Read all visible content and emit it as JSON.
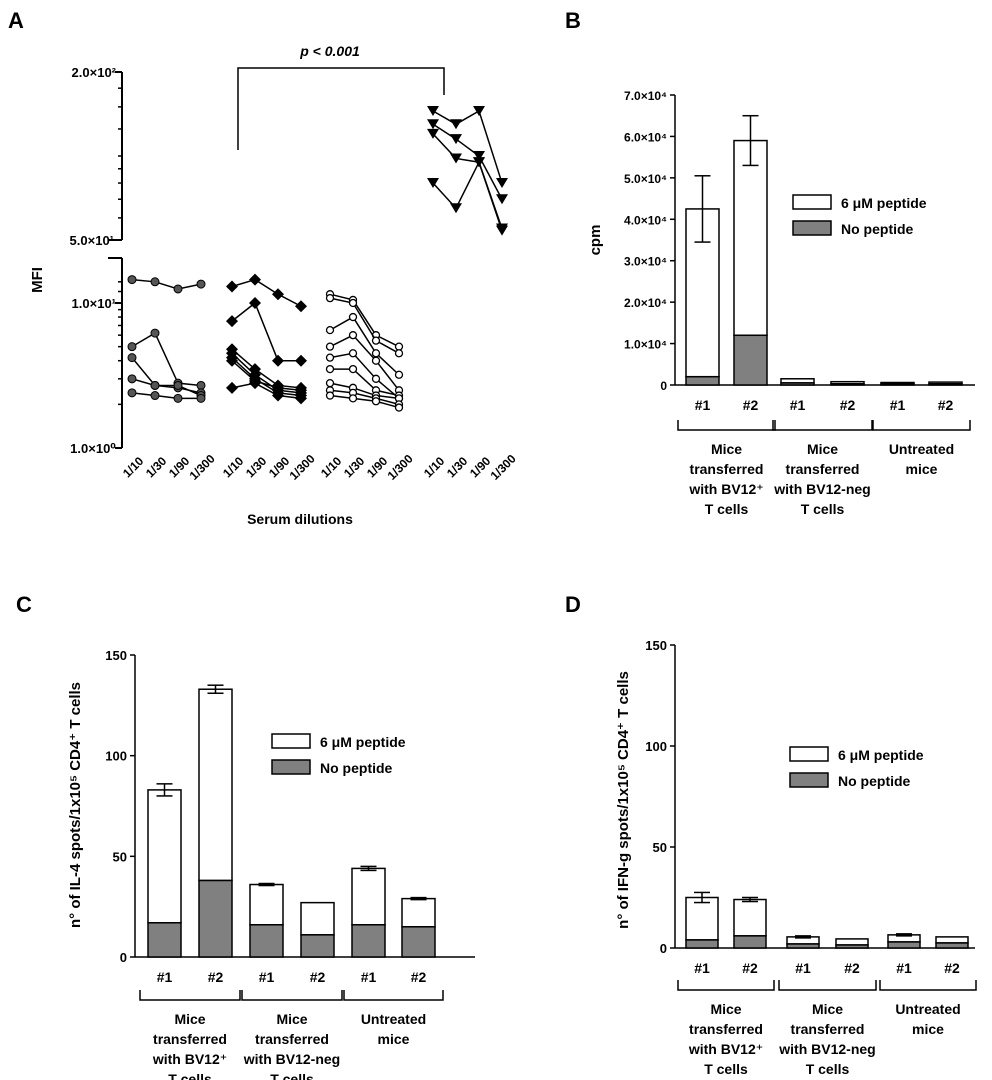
{
  "chart_data": [
    {
      "panel": "A",
      "type": "scatter",
      "ylabel": "MFI",
      "xlabel": "Serum dilutions",
      "yscale": "log",
      "y_tick_labels": [
        "1.0×10⁰",
        "1.0×10¹",
        "5.0×10¹",
        "2.0×10²"
      ],
      "y_tick_values": [
        1,
        10,
        50,
        200
      ],
      "x_categories": [
        "1/10",
        "1/30",
        "1/90",
        "1/300"
      ],
      "annotation": "p < 0.001",
      "groups": [
        {
          "marker": "circle-filled",
          "series": [
            [
              14.5,
              14.0,
              12.5,
              13.5
            ],
            [
              5.0,
              6.2,
              2.8,
              2.7
            ],
            [
              4.2,
              2.7,
              2.6,
              2.4
            ],
            [
              3.0,
              2.7,
              2.7,
              2.3
            ],
            [
              2.4,
              2.3,
              2.2,
              2.2
            ]
          ]
        },
        {
          "marker": "diamond",
          "series": [
            [
              13.0,
              14.5,
              11.5,
              9.5
            ],
            [
              7.5,
              10.0,
              4.0,
              4.0
            ],
            [
              4.8,
              3.5,
              2.7,
              2.6
            ],
            [
              4.5,
              3.2,
              2.5,
              2.4
            ],
            [
              4.2,
              3.0,
              2.4,
              2.3
            ],
            [
              2.6,
              2.8,
              2.3,
              2.2
            ],
            [
              4.0,
              2.9,
              2.6,
              2.5
            ]
          ]
        },
        {
          "marker": "circle-open",
          "series": [
            [
              11.5,
              10.5,
              6.0,
              5.0
            ],
            [
              10.8,
              10.0,
              5.5,
              4.5
            ],
            [
              6.5,
              8.0,
              4.5,
              3.2
            ],
            [
              5.0,
              6.0,
              4.0,
              2.5
            ],
            [
              4.2,
              4.5,
              3.0,
              2.2
            ],
            [
              3.5,
              3.5,
              2.5,
              2.3
            ],
            [
              2.8,
              2.6,
              2.3,
              2.2
            ],
            [
              2.5,
              2.4,
              2.2,
              2.0
            ],
            [
              2.3,
              2.2,
              2.1,
              1.9
            ]
          ]
        },
        {
          "marker": "triangle-down",
          "series": [
            [
              145,
              130,
              145,
              80
            ],
            [
              130,
              115,
              100,
              70
            ],
            [
              120,
              98,
              95,
              55
            ],
            [
              80,
              65,
              95,
              54
            ]
          ]
        }
      ]
    },
    {
      "panel": "B",
      "type": "bar",
      "stacked": true,
      "ylabel": "cpm",
      "y_tick_labels": [
        "0",
        "1.0×10⁴",
        "2.0×10⁴",
        "3.0×10⁴",
        "4.0×10⁴",
        "5.0×10⁴",
        "6.0×10⁴",
        "7.0×10⁴"
      ],
      "ylim": [
        0,
        70000
      ],
      "categories": [
        "#1",
        "#2",
        "#1",
        "#2",
        "#1",
        "#2"
      ],
      "group_labels": [
        [
          "Mice",
          "transferred",
          "with BV12⁺",
          "T cells"
        ],
        [
          "Mice",
          "transferred",
          "with  BV12-neg",
          "T cells"
        ],
        [
          "Untreated",
          "mice"
        ]
      ],
      "series": [
        {
          "name": "No peptide",
          "values": [
            2000,
            12000,
            500,
            300,
            300,
            300
          ],
          "color": "#808080"
        },
        {
          "name": "6 μM peptide",
          "values": [
            40500,
            47000,
            1000,
            500,
            300,
            400
          ],
          "color": "#ffffff"
        }
      ],
      "totals": [
        42500,
        59000,
        1500,
        800,
        600,
        700
      ],
      "errors": [
        8000,
        6000,
        0,
        0,
        0,
        0
      ]
    },
    {
      "panel": "C",
      "type": "bar",
      "stacked": true,
      "ylabel": "n° of IL-4 spots/1x10⁵ CD4⁺ T cells",
      "y_tick_labels": [
        "0",
        "50",
        "100",
        "150"
      ],
      "ylim": [
        0,
        150
      ],
      "categories": [
        "#1",
        "#2",
        "#1",
        "#2",
        "#1",
        "#2"
      ],
      "group_labels": [
        [
          "Mice",
          "transferred",
          "with BV12⁺",
          "T cells"
        ],
        [
          "Mice",
          "transferred",
          "with  BV12-neg",
          "T cells"
        ],
        [
          "Untreated",
          "mice"
        ]
      ],
      "series": [
        {
          "name": "No peptide",
          "values": [
            17,
            38,
            16,
            11,
            16,
            15
          ],
          "color": "#808080"
        },
        {
          "name": "6 μM peptide",
          "values": [
            66,
            95,
            20,
            16,
            28,
            14
          ],
          "color": "#ffffff"
        }
      ],
      "totals": [
        83,
        133,
        36,
        27,
        44,
        29
      ],
      "errors": [
        3,
        2,
        0.5,
        0,
        1,
        0.5
      ]
    },
    {
      "panel": "D",
      "type": "bar",
      "stacked": true,
      "ylabel": "n° of IFN-g spots/1x10⁵ CD4⁺ T cells",
      "y_tick_labels": [
        "0",
        "50",
        "100",
        "150"
      ],
      "ylim": [
        0,
        150
      ],
      "categories": [
        "#1",
        "#2",
        "#1",
        "#2",
        "#1",
        "#2"
      ],
      "group_labels": [
        [
          "Mice",
          "transferred",
          "with BV12⁺",
          "T cells"
        ],
        [
          "Mice",
          "transferred",
          "with  BV12-neg",
          "T cells"
        ],
        [
          "Untreated",
          "mice"
        ]
      ],
      "series": [
        {
          "name": "No peptide",
          "values": [
            4,
            6,
            2,
            1.5,
            3,
            2.5
          ],
          "color": "#808080"
        },
        {
          "name": "6 μM peptide",
          "values": [
            21,
            18,
            3.5,
            3,
            3.5,
            3
          ],
          "color": "#ffffff"
        }
      ],
      "totals": [
        25,
        24,
        5.5,
        4.5,
        6.5,
        5.5
      ],
      "errors": [
        2.5,
        1,
        0.5,
        0,
        0.5,
        0
      ]
    }
  ]
}
